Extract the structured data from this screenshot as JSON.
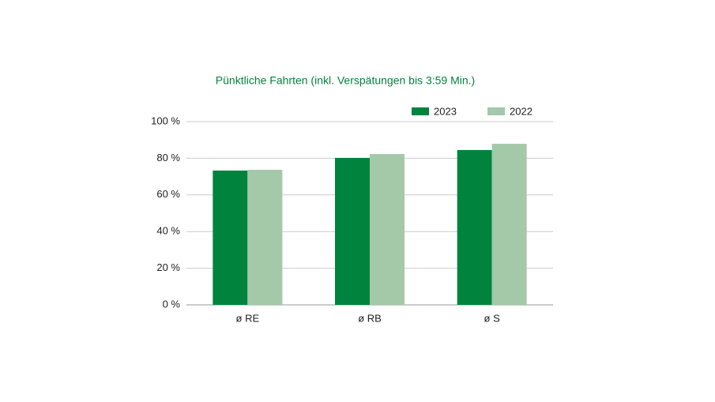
{
  "chart_data": {
    "type": "bar",
    "title": "Pünktliche Fahrten (inkl. Verspätungen bis 3:59 Min.)",
    "categories": [
      "ø RE",
      "ø RB",
      "ø S"
    ],
    "series": [
      {
        "name": "2023",
        "color": "#00843d",
        "values": [
          73.3,
          80.2,
          84.5
        ]
      },
      {
        "name": "2022",
        "color": "#a3c9a8",
        "values": [
          73.7,
          82.3,
          87.9
        ]
      }
    ],
    "ylim": [
      0,
      100
    ],
    "yticks": [
      {
        "value": 0,
        "label": "0 %"
      },
      {
        "value": 20,
        "label": "20 %"
      },
      {
        "value": 40,
        "label": "40 %"
      },
      {
        "value": 60,
        "label": "60 %"
      },
      {
        "value": 80,
        "label": "80 %"
      },
      {
        "value": 100,
        "label": "100 %"
      }
    ],
    "grid": true,
    "legend": "top-right"
  }
}
